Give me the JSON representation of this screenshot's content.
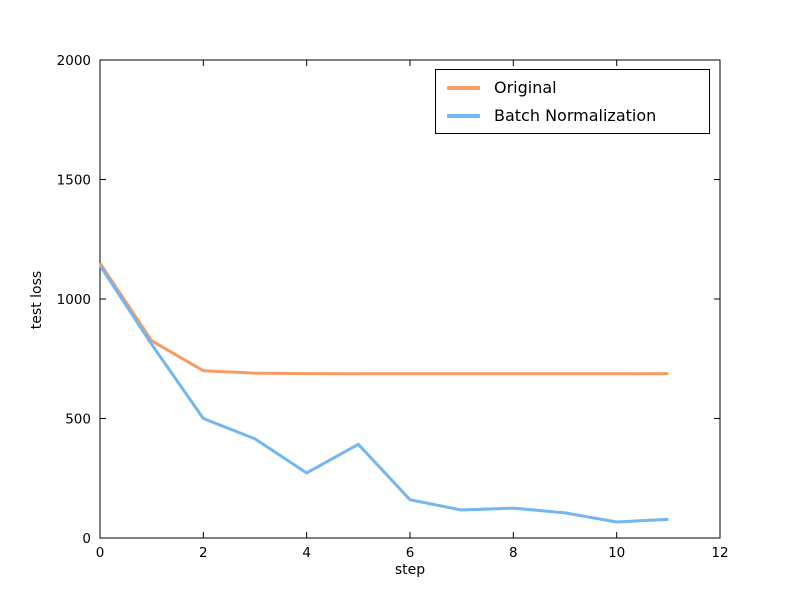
{
  "figure": {
    "background": "#ffffff",
    "frame_color": "#000000",
    "text_color": "#000000"
  },
  "chart_data": {
    "type": "line",
    "title": "",
    "xlabel": "step",
    "ylabel": "test loss",
    "xlim": [
      0,
      12
    ],
    "ylim": [
      0,
      2000
    ],
    "xticks": [
      "0",
      "2",
      "4",
      "6",
      "8",
      "10",
      "12"
    ],
    "xtick_values": [
      0,
      2,
      4,
      6,
      8,
      10,
      12
    ],
    "yticks": [
      "0",
      "500",
      "1000",
      "1500",
      "2000"
    ],
    "ytick_values": [
      0,
      500,
      1000,
      1500,
      2000
    ],
    "grid": false,
    "line_width": 3,
    "tick_direction": "in",
    "legend_position": "upper center-right",
    "x": [
      0,
      1,
      2,
      3,
      4,
      5,
      6,
      7,
      8,
      9,
      10,
      11
    ],
    "series": [
      {
        "name": "Original",
        "color": "#FA9A62",
        "values": [
          1150,
          825,
          700,
          690,
          688,
          687,
          687,
          687,
          687,
          687,
          687,
          688
        ]
      },
      {
        "name": "Batch Normalization",
        "color": "#74B6F0",
        "values": [
          1140,
          810,
          500,
          415,
          272,
          392,
          160,
          117,
          125,
          105,
          67,
          78
        ]
      }
    ]
  }
}
